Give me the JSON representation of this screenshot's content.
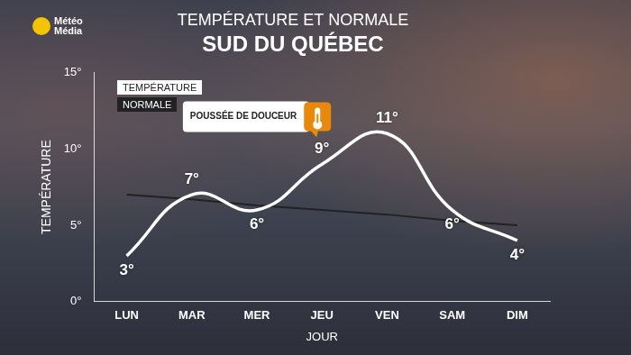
{
  "logo": "Météo Média",
  "chart_data": {
    "type": "line",
    "title": "TEMPÉRATURE ET NORMALE",
    "subtitle": "SUD DU QUÉBEC",
    "x_label": "JOUR",
    "y_label": "TEMPÉRATURE",
    "categories": [
      "LUN",
      "MAR",
      "MER",
      "JEU",
      "VEN",
      "SAM",
      "DIM"
    ],
    "series": [
      {
        "name": "TEMPÉRATURE",
        "color": "#ffffff",
        "line_style": "solid",
        "marker": "none",
        "values": [
          3,
          7,
          6,
          9,
          11,
          6,
          4
        ],
        "value_labels": [
          "3°",
          "7°",
          "6°",
          "9°",
          "11°",
          "6°",
          "4°"
        ]
      },
      {
        "name": "NORMALE",
        "color": "#222222",
        "line_style": "solid",
        "marker": "none",
        "values": [
          7,
          6.7,
          6.3,
          6.0,
          5.7,
          5.3,
          5.0
        ]
      }
    ],
    "ylim": [
      0,
      15
    ],
    "yticks": [
      {
        "value": 0,
        "label": "0°"
      },
      {
        "value": 5,
        "label": "5°"
      },
      {
        "value": 10,
        "label": "10°"
      },
      {
        "value": 15,
        "label": "15°"
      }
    ],
    "grid": false,
    "legend": "upper left",
    "data_labels": true,
    "annotations": [
      {
        "text": "POUSSÉE DE DOUCEUR",
        "category": "JEU"
      }
    ]
  }
}
